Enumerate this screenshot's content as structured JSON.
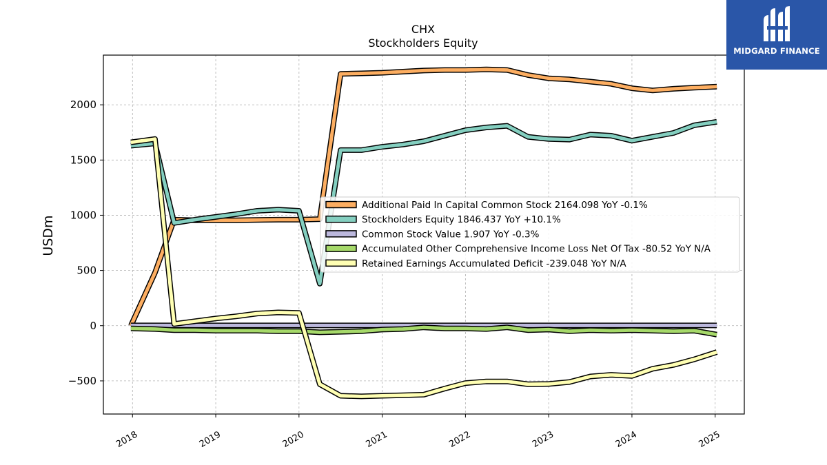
{
  "logo": {
    "text": "MIDGARD FINANCE",
    "icon": "midgard-m-logo-icon",
    "background": "#2a56a8"
  },
  "chart_data": {
    "type": "line",
    "title": "CHX",
    "subtitle": "Stockholders  Equity",
    "xlabel": "",
    "ylabel": "USDm",
    "x_ticks": [
      "2018",
      "2019",
      "2020",
      "2021",
      "2022",
      "2023",
      "2024",
      "2025"
    ],
    "y_ticks": [
      "2000",
      "1500",
      "1000",
      "500",
      "0",
      "−500"
    ],
    "x_range": [
      2017.65,
      2025.35
    ],
    "ylim": [
      -800,
      2450
    ],
    "grid": true,
    "legend_position": "center-right",
    "x": [
      2017.98,
      2018.27,
      2018.5,
      2018.75,
      2019.0,
      2019.25,
      2019.5,
      2019.75,
      2020.0,
      2020.25,
      2020.5,
      2020.75,
      2021.0,
      2021.25,
      2021.5,
      2021.75,
      2022.0,
      2022.25,
      2022.5,
      2022.75,
      2023.0,
      2023.25,
      2023.5,
      2023.75,
      2024.0,
      2024.25,
      2024.5,
      2024.75,
      2025.02
    ],
    "series": [
      {
        "name": "Additional Paid In Capital Common Stock  2164.098 YoY -0.1%",
        "color": "#fdae61",
        "values": [
          0,
          480,
          960,
          955,
          955,
          955,
          958,
          960,
          960,
          965,
          2280,
          2285,
          2290,
          2300,
          2310,
          2315,
          2315,
          2320,
          2315,
          2270,
          2240,
          2230,
          2210,
          2190,
          2150,
          2130,
          2145,
          2155,
          2164
        ]
      },
      {
        "name": "Stockholders Equity  1846.437 YoY +10.1%",
        "color": "#84cfc0",
        "values": [
          1630,
          1650,
          930,
          960,
          985,
          1010,
          1040,
          1050,
          1040,
          380,
          1590,
          1590,
          1620,
          1640,
          1670,
          1720,
          1770,
          1795,
          1810,
          1710,
          1690,
          1685,
          1730,
          1720,
          1675,
          1710,
          1745,
          1815,
          1846
        ]
      },
      {
        "name": "Common Stock Value  1.907 YoY -0.3%",
        "color": "#bcb8dd",
        "values": [
          2,
          2,
          2,
          2,
          2,
          2,
          2,
          2,
          2,
          2,
          2,
          2,
          2,
          2,
          2,
          2,
          2,
          2,
          2,
          2,
          2,
          2,
          2,
          2,
          2,
          2,
          2,
          2,
          1.9
        ]
      },
      {
        "name": "Accumulated Other Comprehensive Income Loss Net Of Tax  -80.52 YoY N/A",
        "color": "#a6d96a",
        "values": [
          -25,
          -30,
          -40,
          -40,
          -45,
          -45,
          -45,
          -50,
          -50,
          -60,
          -55,
          -50,
          -35,
          -30,
          -15,
          -25,
          -25,
          -30,
          -15,
          -40,
          -35,
          -50,
          -40,
          -45,
          -40,
          -45,
          -50,
          -45,
          -80.5
        ]
      },
      {
        "name": "Retained Earnings Accumulated Deficit  -239.048 YoY N/A",
        "color": "#ffffb3",
        "values": [
          1660,
          1690,
          15,
          40,
          65,
          85,
          110,
          120,
          115,
          -530,
          -635,
          -640,
          -635,
          -630,
          -625,
          -570,
          -520,
          -505,
          -505,
          -530,
          -528,
          -510,
          -460,
          -445,
          -455,
          -390,
          -355,
          -305,
          -239
        ]
      }
    ]
  }
}
